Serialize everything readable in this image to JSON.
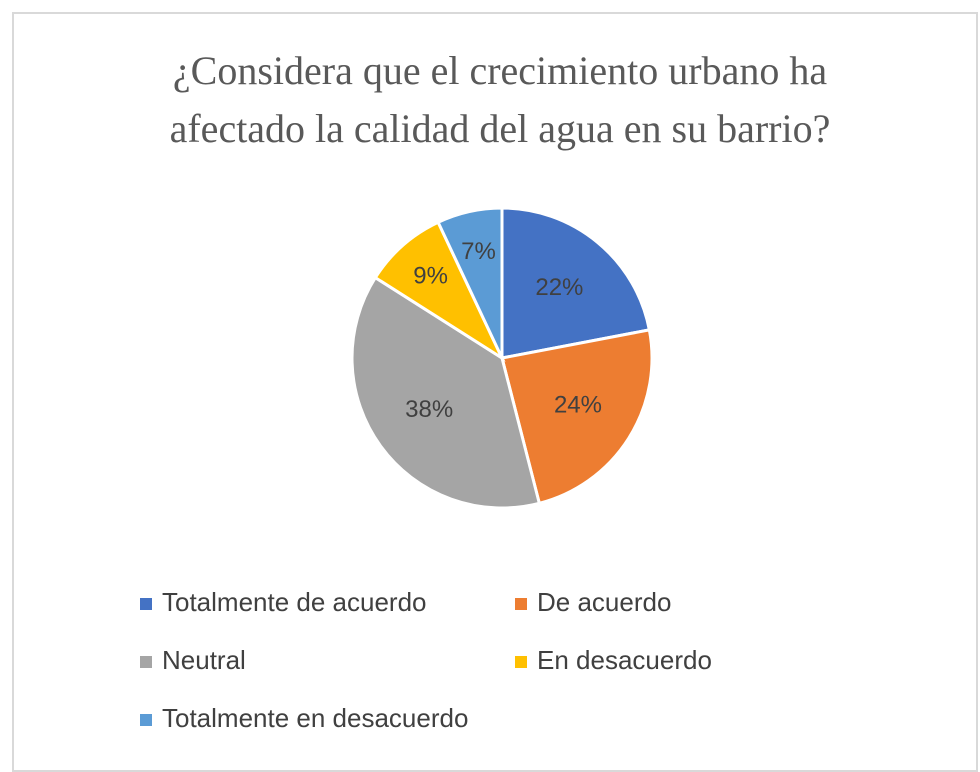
{
  "chart_data": {
    "type": "pie",
    "title": "¿Considera que el crecimiento urbano ha afectado la calidad del agua en su barrio?",
    "categories": [
      "Totalmente de acuerdo",
      "De acuerdo",
      "Neutral",
      "En desacuerdo",
      "Totalmente en desacuerdo"
    ],
    "values": [
      22,
      24,
      38,
      9,
      7
    ],
    "value_labels": [
      "22%",
      "24%",
      "38%",
      "9%",
      "7%"
    ],
    "colors": [
      "#4472c4",
      "#ed7d31",
      "#a5a5a5",
      "#ffc000",
      "#5b9bd5"
    ],
    "legend": "bottom"
  }
}
